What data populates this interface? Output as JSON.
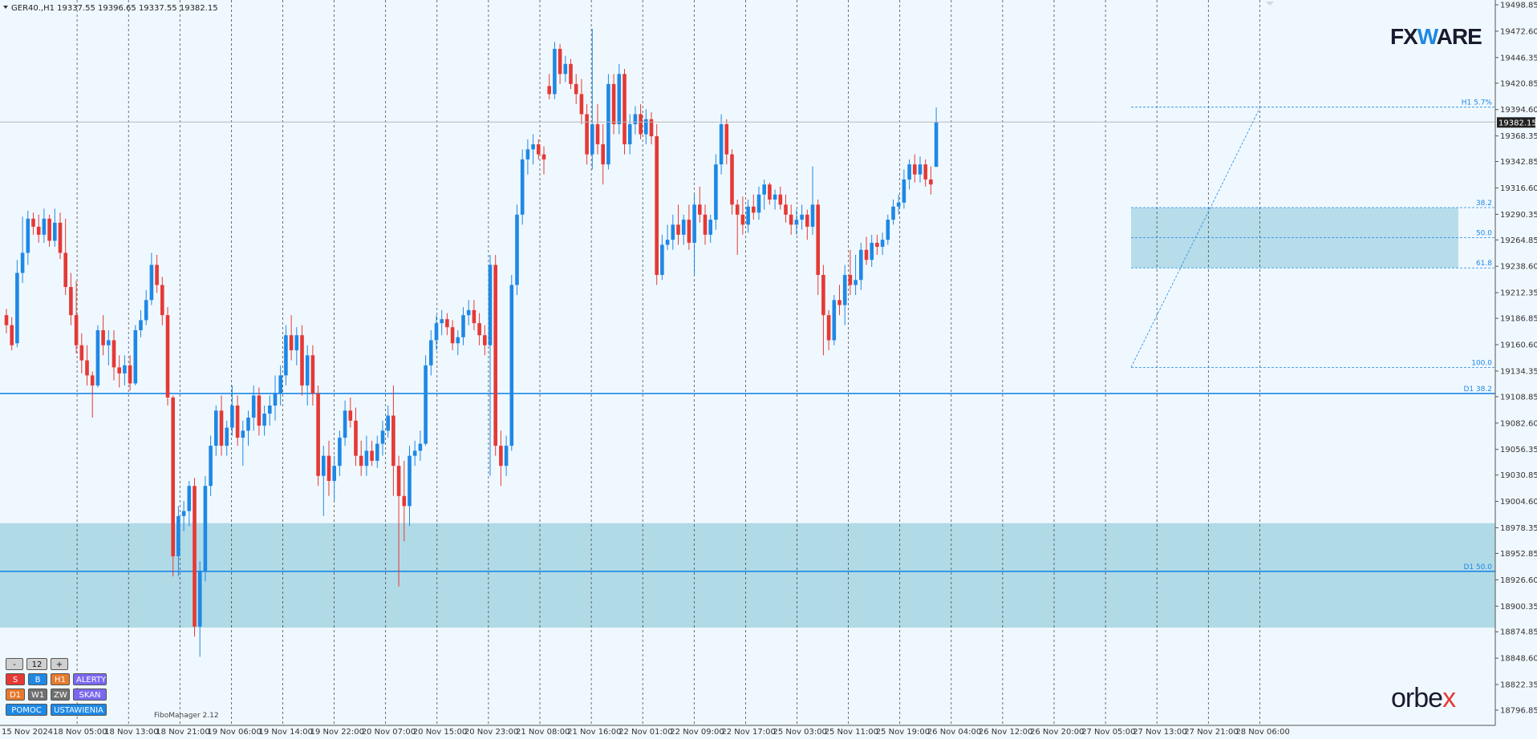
{
  "header": {
    "title": "GER40.,H1  19337.55 19396.65 19337.55 19382.15"
  },
  "current_price_label": "19382.15",
  "fibo_manager_label": "FiboManager 2.12",
  "brand": {
    "top": "FXWARE",
    "bottom": "orbex"
  },
  "panel": {
    "minus": "-",
    "count": "12",
    "plus": "+",
    "s": "S",
    "b": "B",
    "h1": "H1",
    "alerty": "ALERTY",
    "d1": "D1",
    "w1": "W1",
    "zw": "ZW",
    "skan": "SKAN",
    "pomoc": "POMOC",
    "ustawienia": "USTAWIENIA"
  },
  "colors": {
    "bull": "#1e88e5",
    "bear": "#e53935",
    "background": "#f0f8ff",
    "zone": "#add8e6",
    "line": "#1e88e5"
  },
  "chart_data": {
    "type": "candlestick",
    "symbol": "GER40.",
    "timeframe": "H1",
    "ohlc_header": {
      "open": 19337.55,
      "high": 19396.65,
      "low": 19337.55,
      "close": 19382.15
    },
    "current_price": 19382.15,
    "ylim": [
      19784,
      19500
    ],
    "y_ticks": [
      19498.85,
      19472.6,
      19446.35,
      19420.85,
      19394.6,
      19368.35,
      19342.85,
      19316.6,
      19290.35,
      19264.85,
      19238.6,
      19212.35,
      19186.85,
      19160.6,
      19134.35,
      19108.85,
      19082.6,
      19056.35,
      19030.85,
      19004.6,
      18978.35,
      18952.85,
      18926.6,
      18900.35,
      18874.85,
      18848.6,
      18822.35,
      18796.85
    ],
    "x_ticks": [
      "15 Nov 2024",
      "18 Nov 05:00",
      "18 Nov 13:00",
      "18 Nov 21:00",
      "19 Nov 06:00",
      "19 Nov 14:00",
      "19 Nov 22:00",
      "20 Nov 07:00",
      "20 Nov 15:00",
      "20 Nov 23:00",
      "21 Nov 08:00",
      "21 Nov 16:00",
      "22 Nov 01:00",
      "22 Nov 09:00",
      "22 Nov 17:00",
      "25 Nov 03:00",
      "25 Nov 11:00",
      "25 Nov 19:00",
      "26 Nov 04:00",
      "26 Nov 12:00",
      "26 Nov 20:00",
      "27 Nov 05:00",
      "27 Nov 13:00",
      "27 Nov 21:00",
      "28 Nov 06:00"
    ],
    "levels": [
      {
        "label": "H1 5.7%",
        "price": 19397,
        "style": "dashed"
      },
      {
        "label": "38.2",
        "price": 19297,
        "style": "dashed"
      },
      {
        "label": "50.0",
        "price": 19267,
        "style": "dashed"
      },
      {
        "label": "61.8",
        "price": 19237,
        "style": "dashed"
      },
      {
        "label": "100.0",
        "price": 19138,
        "style": "dashed"
      },
      {
        "label": "D1 38.2",
        "price": 19112,
        "style": "solid"
      },
      {
        "label": "D1 50.0",
        "price": 18935,
        "style": "solid"
      }
    ],
    "zones": [
      {
        "from": 19237,
        "to": 19297
      },
      {
        "from": 18879,
        "to": 18983
      }
    ],
    "candles": [
      {
        "o": 19190,
        "h": 19196,
        "l": 19172,
        "c": 19180
      },
      {
        "o": 19180,
        "h": 19188,
        "l": 19155,
        "c": 19160
      },
      {
        "o": 19162,
        "h": 19245,
        "l": 19158,
        "c": 19232
      },
      {
        "o": 19232,
        "h": 19288,
        "l": 19222,
        "c": 19252
      },
      {
        "o": 19252,
        "h": 19294,
        "l": 19240,
        "c": 19286
      },
      {
        "o": 19286,
        "h": 19292,
        "l": 19270,
        "c": 19278
      },
      {
        "o": 19278,
        "h": 19290,
        "l": 19262,
        "c": 19270
      },
      {
        "o": 19270,
        "h": 19296,
        "l": 19262,
        "c": 19286
      },
      {
        "o": 19286,
        "h": 19290,
        "l": 19258,
        "c": 19264
      },
      {
        "o": 19264,
        "h": 19296,
        "l": 19258,
        "c": 19282
      },
      {
        "o": 19282,
        "h": 19292,
        "l": 19246,
        "c": 19252
      },
      {
        "o": 19252,
        "h": 19286,
        "l": 19210,
        "c": 19218
      },
      {
        "o": 19218,
        "h": 19232,
        "l": 19180,
        "c": 19190
      },
      {
        "o": 19190,
        "h": 19224,
        "l": 19152,
        "c": 19160
      },
      {
        "o": 19160,
        "h": 19172,
        "l": 19132,
        "c": 19145
      },
      {
        "o": 19145,
        "h": 19160,
        "l": 19120,
        "c": 19130
      },
      {
        "o": 19130,
        "h": 19134,
        "l": 19088,
        "c": 19120
      },
      {
        "o": 19120,
        "h": 19180,
        "l": 19118,
        "c": 19175
      },
      {
        "o": 19175,
        "h": 19190,
        "l": 19150,
        "c": 19160
      },
      {
        "o": 19160,
        "h": 19175,
        "l": 19140,
        "c": 19165
      },
      {
        "o": 19165,
        "h": 19175,
        "l": 19125,
        "c": 19138
      },
      {
        "o": 19138,
        "h": 19150,
        "l": 19118,
        "c": 19132
      },
      {
        "o": 19132,
        "h": 19150,
        "l": 19120,
        "c": 19140
      },
      {
        "o": 19140,
        "h": 19150,
        "l": 19115,
        "c": 19122
      },
      {
        "o": 19122,
        "h": 19180,
        "l": 19120,
        "c": 19175
      },
      {
        "o": 19175,
        "h": 19195,
        "l": 19168,
        "c": 19185
      },
      {
        "o": 19185,
        "h": 19215,
        "l": 19180,
        "c": 19205
      },
      {
        "o": 19205,
        "h": 19252,
        "l": 19200,
        "c": 19240
      },
      {
        "o": 19240,
        "h": 19250,
        "l": 19212,
        "c": 19220
      },
      {
        "o": 19220,
        "h": 19228,
        "l": 19180,
        "c": 19190
      },
      {
        "o": 19190,
        "h": 19198,
        "l": 19100,
        "c": 19108
      },
      {
        "o": 19108,
        "h": 19110,
        "l": 18930,
        "c": 18950
      },
      {
        "o": 18950,
        "h": 19000,
        "l": 18930,
        "c": 18990
      },
      {
        "o": 18990,
        "h": 19005,
        "l": 18975,
        "c": 18995
      },
      {
        "o": 18995,
        "h": 19025,
        "l": 18980,
        "c": 19020
      },
      {
        "o": 19020,
        "h": 19028,
        "l": 18870,
        "c": 18880
      },
      {
        "o": 18880,
        "h": 18945,
        "l": 18850,
        "c": 18935
      },
      {
        "o": 18935,
        "h": 19030,
        "l": 18925,
        "c": 19020
      },
      {
        "o": 19020,
        "h": 19070,
        "l": 19010,
        "c": 19060
      },
      {
        "o": 19060,
        "h": 19100,
        "l": 19050,
        "c": 19095
      },
      {
        "o": 19095,
        "h": 19110,
        "l": 19050,
        "c": 19060
      },
      {
        "o": 19060,
        "h": 19085,
        "l": 19050,
        "c": 19078
      },
      {
        "o": 19078,
        "h": 19120,
        "l": 19070,
        "c": 19100
      },
      {
        "o": 19100,
        "h": 19110,
        "l": 19060,
        "c": 19068
      },
      {
        "o": 19068,
        "h": 19085,
        "l": 19040,
        "c": 19075
      },
      {
        "o": 19075,
        "h": 19095,
        "l": 19060,
        "c": 19088
      },
      {
        "o": 19088,
        "h": 19120,
        "l": 19075,
        "c": 19110
      },
      {
        "o": 19110,
        "h": 19118,
        "l": 19070,
        "c": 19080
      },
      {
        "o": 19080,
        "h": 19100,
        "l": 19070,
        "c": 19092
      },
      {
        "o": 19092,
        "h": 19110,
        "l": 19080,
        "c": 19100
      },
      {
        "o": 19100,
        "h": 19130,
        "l": 19085,
        "c": 19112
      },
      {
        "o": 19112,
        "h": 19140,
        "l": 19100,
        "c": 19130
      },
      {
        "o": 19130,
        "h": 19180,
        "l": 19120,
        "c": 19170
      },
      {
        "o": 19170,
        "h": 19190,
        "l": 19145,
        "c": 19155
      },
      {
        "o": 19155,
        "h": 19178,
        "l": 19140,
        "c": 19170
      },
      {
        "o": 19170,
        "h": 19180,
        "l": 19110,
        "c": 19120
      },
      {
        "o": 19120,
        "h": 19160,
        "l": 19100,
        "c": 19150
      },
      {
        "o": 19150,
        "h": 19160,
        "l": 19100,
        "c": 19112
      },
      {
        "o": 19112,
        "h": 19120,
        "l": 19020,
        "c": 19030
      },
      {
        "o": 19030,
        "h": 19060,
        "l": 18990,
        "c": 19050
      },
      {
        "o": 19050,
        "h": 19065,
        "l": 19010,
        "c": 19025
      },
      {
        "o": 19025,
        "h": 19050,
        "l": 19005,
        "c": 19040
      },
      {
        "o": 19040,
        "h": 19075,
        "l": 19030,
        "c": 19068
      },
      {
        "o": 19068,
        "h": 19105,
        "l": 19060,
        "c": 19095
      },
      {
        "o": 19095,
        "h": 19108,
        "l": 19078,
        "c": 19085
      },
      {
        "o": 19085,
        "h": 19098,
        "l": 19040,
        "c": 19050
      },
      {
        "o": 19050,
        "h": 19065,
        "l": 19030,
        "c": 19040
      },
      {
        "o": 19040,
        "h": 19070,
        "l": 19030,
        "c": 19055
      },
      {
        "o": 19055,
        "h": 19065,
        "l": 19040,
        "c": 19045
      },
      {
        "o": 19045,
        "h": 19070,
        "l": 19038,
        "c": 19062
      },
      {
        "o": 19062,
        "h": 19085,
        "l": 19050,
        "c": 19075
      },
      {
        "o": 19075,
        "h": 19100,
        "l": 19068,
        "c": 19090
      },
      {
        "o": 19090,
        "h": 19120,
        "l": 19010,
        "c": 19040
      },
      {
        "o": 19040,
        "h": 19050,
        "l": 18920,
        "c": 19010
      },
      {
        "o": 19010,
        "h": 19045,
        "l": 18965,
        "c": 19000
      },
      {
        "o": 19000,
        "h": 19060,
        "l": 18980,
        "c": 19050
      },
      {
        "o": 19050,
        "h": 19065,
        "l": 19040,
        "c": 19055
      },
      {
        "o": 19055,
        "h": 19075,
        "l": 19045,
        "c": 19062
      },
      {
        "o": 19062,
        "h": 19150,
        "l": 19060,
        "c": 19140
      },
      {
        "o": 19140,
        "h": 19175,
        "l": 19130,
        "c": 19165
      },
      {
        "o": 19165,
        "h": 19190,
        "l": 19155,
        "c": 19182
      },
      {
        "o": 19182,
        "h": 19195,
        "l": 19170,
        "c": 19186
      },
      {
        "o": 19186,
        "h": 19192,
        "l": 19170,
        "c": 19178
      },
      {
        "o": 19178,
        "h": 19185,
        "l": 19155,
        "c": 19162
      },
      {
        "o": 19162,
        "h": 19175,
        "l": 19150,
        "c": 19168
      },
      {
        "o": 19168,
        "h": 19198,
        "l": 19160,
        "c": 19190
      },
      {
        "o": 19190,
        "h": 19205,
        "l": 19180,
        "c": 19195
      },
      {
        "o": 19195,
        "h": 19205,
        "l": 19175,
        "c": 19182
      },
      {
        "o": 19182,
        "h": 19192,
        "l": 19160,
        "c": 19170
      },
      {
        "o": 19170,
        "h": 19180,
        "l": 19150,
        "c": 19160
      },
      {
        "o": 19160,
        "h": 19250,
        "l": 19030,
        "c": 19240
      },
      {
        "o": 19240,
        "h": 19250,
        "l": 19050,
        "c": 19060
      },
      {
        "o": 19060,
        "h": 19075,
        "l": 19020,
        "c": 19040
      },
      {
        "o": 19040,
        "h": 19070,
        "l": 19030,
        "c": 19060
      },
      {
        "o": 19060,
        "h": 19230,
        "l": 19055,
        "c": 19220
      },
      {
        "o": 19220,
        "h": 19300,
        "l": 19210,
        "c": 19290
      },
      {
        "o": 19290,
        "h": 19355,
        "l": 19280,
        "c": 19345
      },
      {
        "o": 19345,
        "h": 19365,
        "l": 19330,
        "c": 19355
      },
      {
        "o": 19355,
        "h": 19370,
        "l": 19340,
        "c": 19360
      },
      {
        "o": 19360,
        "h": 19365,
        "l": 19345,
        "c": 19350
      },
      {
        "o": 19350,
        "h": 19358,
        "l": 19330,
        "c": 19345
      },
      {
        "o": 19418,
        "h": 19430,
        "l": 19405,
        "c": 19410
      },
      {
        "o": 19410,
        "h": 19462,
        "l": 19405,
        "c": 19455
      },
      {
        "o": 19455,
        "h": 19460,
        "l": 19420,
        "c": 19430
      },
      {
        "o": 19430,
        "h": 19448,
        "l": 19422,
        "c": 19440
      },
      {
        "o": 19440,
        "h": 19445,
        "l": 19415,
        "c": 19420
      },
      {
        "o": 19420,
        "h": 19430,
        "l": 19400,
        "c": 19410
      },
      {
        "o": 19410,
        "h": 19425,
        "l": 19380,
        "c": 19390
      },
      {
        "o": 19390,
        "h": 19400,
        "l": 19340,
        "c": 19350
      },
      {
        "o": 19350,
        "h": 19475,
        "l": 19335,
        "c": 19380
      },
      {
        "o": 19380,
        "h": 19400,
        "l": 19350,
        "c": 19360
      },
      {
        "o": 19360,
        "h": 19380,
        "l": 19320,
        "c": 19340
      },
      {
        "o": 19340,
        "h": 19430,
        "l": 19335,
        "c": 19420
      },
      {
        "o": 19420,
        "h": 19430,
        "l": 19370,
        "c": 19380
      },
      {
        "o": 19380,
        "h": 19440,
        "l": 19370,
        "c": 19430
      },
      {
        "o": 19430,
        "h": 19435,
        "l": 19350,
        "c": 19360
      },
      {
        "o": 19360,
        "h": 19390,
        "l": 19350,
        "c": 19380
      },
      {
        "o": 19380,
        "h": 19398,
        "l": 19370,
        "c": 19390
      },
      {
        "o": 19390,
        "h": 19400,
        "l": 19365,
        "c": 19370
      },
      {
        "o": 19370,
        "h": 19395,
        "l": 19360,
        "c": 19385
      },
      {
        "o": 19385,
        "h": 19392,
        "l": 19360,
        "c": 19368
      },
      {
        "o": 19368,
        "h": 19380,
        "l": 19220,
        "c": 19230
      },
      {
        "o": 19230,
        "h": 19270,
        "l": 19225,
        "c": 19260
      },
      {
        "o": 19260,
        "h": 19280,
        "l": 19255,
        "c": 19265
      },
      {
        "o": 19265,
        "h": 19290,
        "l": 19255,
        "c": 19280
      },
      {
        "o": 19280,
        "h": 19300,
        "l": 19260,
        "c": 19270
      },
      {
        "o": 19270,
        "h": 19290,
        "l": 19260,
        "c": 19285
      },
      {
        "o": 19285,
        "h": 19300,
        "l": 19255,
        "c": 19262
      },
      {
        "o": 19262,
        "h": 19310,
        "l": 19230,
        "c": 19300
      },
      {
        "o": 19300,
        "h": 19318,
        "l": 19282,
        "c": 19290
      },
      {
        "o": 19290,
        "h": 19300,
        "l": 19260,
        "c": 19270
      },
      {
        "o": 19270,
        "h": 19290,
        "l": 19262,
        "c": 19285
      },
      {
        "o": 19285,
        "h": 19350,
        "l": 19275,
        "c": 19340
      },
      {
        "o": 19340,
        "h": 19390,
        "l": 19330,
        "c": 19380
      },
      {
        "o": 19380,
        "h": 19385,
        "l": 19340,
        "c": 19350
      },
      {
        "o": 19350,
        "h": 19355,
        "l": 19290,
        "c": 19300
      },
      {
        "o": 19300,
        "h": 19305,
        "l": 19250,
        "c": 19290
      },
      {
        "o": 19290,
        "h": 19308,
        "l": 19270,
        "c": 19280
      },
      {
        "o": 19280,
        "h": 19305,
        "l": 19272,
        "c": 19298
      },
      {
        "o": 19298,
        "h": 19310,
        "l": 19285,
        "c": 19292
      },
      {
        "o": 19292,
        "h": 19318,
        "l": 19285,
        "c": 19310
      },
      {
        "o": 19310,
        "h": 19325,
        "l": 19295,
        "c": 19320
      },
      {
        "o": 19320,
        "h": 19322,
        "l": 19300,
        "c": 19305
      },
      {
        "o": 19305,
        "h": 19315,
        "l": 19295,
        "c": 19310
      },
      {
        "o": 19310,
        "h": 19318,
        "l": 19295,
        "c": 19300
      },
      {
        "o": 19300,
        "h": 19310,
        "l": 19282,
        "c": 19290
      },
      {
        "o": 19290,
        "h": 19300,
        "l": 19270,
        "c": 19280
      },
      {
        "o": 19280,
        "h": 19295,
        "l": 19270,
        "c": 19285
      },
      {
        "o": 19285,
        "h": 19300,
        "l": 19275,
        "c": 19290
      },
      {
        "o": 19290,
        "h": 19295,
        "l": 19265,
        "c": 19278
      },
      {
        "o": 19278,
        "h": 19338,
        "l": 19270,
        "c": 19300
      },
      {
        "o": 19300,
        "h": 19305,
        "l": 19210,
        "c": 19230
      },
      {
        "o": 19230,
        "h": 19240,
        "l": 19150,
        "c": 19190
      },
      {
        "o": 19190,
        "h": 19195,
        "l": 19155,
        "c": 19165
      },
      {
        "o": 19165,
        "h": 19210,
        "l": 19160,
        "c": 19205
      },
      {
        "o": 19205,
        "h": 19220,
        "l": 19190,
        "c": 19200
      },
      {
        "o": 19200,
        "h": 19240,
        "l": 19180,
        "c": 19230
      },
      {
        "o": 19230,
        "h": 19255,
        "l": 19210,
        "c": 19220
      },
      {
        "o": 19220,
        "h": 19250,
        "l": 19210,
        "c": 19225
      },
      {
        "o": 19225,
        "h": 19262,
        "l": 19215,
        "c": 19255
      },
      {
        "o": 19255,
        "h": 19268,
        "l": 19240,
        "c": 19245
      },
      {
        "o": 19245,
        "h": 19270,
        "l": 19238,
        "c": 19262
      },
      {
        "o": 19262,
        "h": 19270,
        "l": 19250,
        "c": 19258
      },
      {
        "o": 19258,
        "h": 19272,
        "l": 19250,
        "c": 19265
      },
      {
        "o": 19265,
        "h": 19290,
        "l": 19260,
        "c": 19285
      },
      {
        "o": 19285,
        "h": 19305,
        "l": 19280,
        "c": 19298
      },
      {
        "o": 19298,
        "h": 19310,
        "l": 19290,
        "c": 19302
      },
      {
        "o": 19302,
        "h": 19335,
        "l": 19296,
        "c": 19325
      },
      {
        "o": 19325,
        "h": 19345,
        "l": 19315,
        "c": 19340
      },
      {
        "o": 19340,
        "h": 19350,
        "l": 19322,
        "c": 19330
      },
      {
        "o": 19330,
        "h": 19348,
        "l": 19322,
        "c": 19340
      },
      {
        "o": 19340,
        "h": 19345,
        "l": 19318,
        "c": 19325
      },
      {
        "o": 19325,
        "h": 19338,
        "l": 19310,
        "c": 19320
      },
      {
        "o": 19337.55,
        "h": 19396.65,
        "l": 19337.55,
        "c": 19382.15
      }
    ]
  }
}
